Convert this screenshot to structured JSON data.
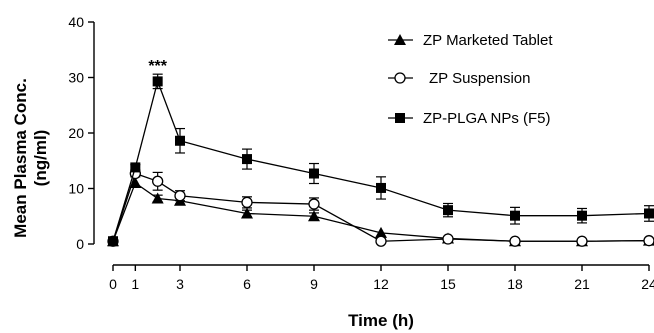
{
  "chart_data": {
    "type": "line",
    "xlabel": "Time (h)",
    "ylabel": "Mean Plasma Conc. (ng/ml)",
    "ylabel_lines": [
      "Mean Plasma Conc.",
      "(ng/ml)"
    ],
    "xlim": [
      0,
      24
    ],
    "ylim": [
      0,
      40
    ],
    "x_ticks": [
      0,
      1,
      3,
      6,
      9,
      12,
      15,
      18,
      21,
      24
    ],
    "y_ticks": [
      0,
      10,
      20,
      30,
      40
    ],
    "grid": false,
    "legend_position": "top-right",
    "annotations": [
      {
        "text": "***",
        "x": 2,
        "y": 30.8
      }
    ],
    "series": [
      {
        "name": "ZP Marketed Tablet",
        "marker": "triangle",
        "color": "#000000",
        "x": [
          0,
          1,
          2,
          3,
          6,
          9,
          12,
          15,
          18,
          21,
          24
        ],
        "y": [
          0.5,
          11.0,
          8.2,
          7.8,
          5.5,
          5.0,
          2.0,
          1.0,
          0.5,
          0.5,
          0.6
        ],
        "error": [
          0,
          0,
          0.6,
          0.6,
          0.6,
          0.6,
          0,
          0,
          0,
          0,
          0
        ]
      },
      {
        "name": "ZP Suspension",
        "marker": "circle-open",
        "color": "#000000",
        "x": [
          0,
          1,
          2,
          3,
          6,
          9,
          12,
          15,
          18,
          21,
          24
        ],
        "y": [
          0.5,
          12.7,
          11.3,
          8.7,
          7.5,
          7.2,
          0.5,
          0.9,
          0.5,
          0.5,
          0.6
        ],
        "error": [
          0,
          0.6,
          1.6,
          0.9,
          1.0,
          1.1,
          0,
          0.4,
          0,
          0,
          0
        ]
      },
      {
        "name": "ZP-PLGA NPs (F5)",
        "marker": "square",
        "color": "#000000",
        "x": [
          0,
          1,
          2,
          3,
          6,
          9,
          12,
          15,
          18,
          21,
          24
        ],
        "y": [
          0.5,
          13.8,
          29.3,
          18.6,
          15.3,
          12.7,
          10.1,
          6.1,
          5.1,
          5.1,
          5.5
        ],
        "error": [
          0,
          0.5,
          1.3,
          2.2,
          1.8,
          1.8,
          2.0,
          1.2,
          1.5,
          1.3,
          1.4
        ]
      }
    ]
  }
}
